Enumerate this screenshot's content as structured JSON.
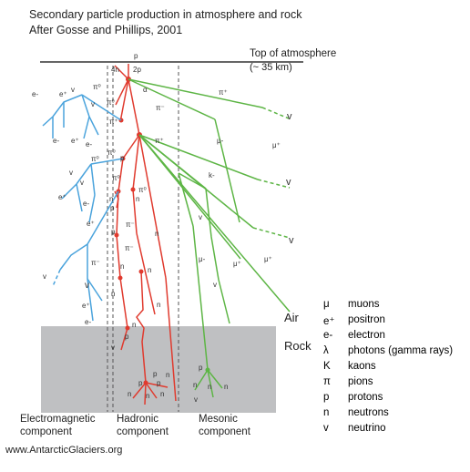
{
  "title": "Secondary particle production in atmosphere and rock",
  "subtitle": "After Gosse and Phillips, 2001",
  "top_of_atmosphere": {
    "label": "Top of atmosphere",
    "altitude": "(~ 35 km)"
  },
  "layers": {
    "air": "Air",
    "rock": "Rock"
  },
  "components": [
    {
      "line1": "Electromagnetic",
      "line2": "component"
    },
    {
      "line1": "Hadronic",
      "line2": "component"
    },
    {
      "line1": "Mesonic",
      "line2": "component"
    }
  ],
  "legend": [
    {
      "symbol": "μ",
      "meaning": "muons"
    },
    {
      "symbol": "e⁺",
      "meaning": "positron"
    },
    {
      "symbol": "e-",
      "meaning": "electron"
    },
    {
      "symbol": "λ",
      "meaning": "photons (gamma rays)"
    },
    {
      "symbol": "K",
      "meaning": "kaons"
    },
    {
      "symbol": "π",
      "meaning": "pions"
    },
    {
      "symbol": "p",
      "meaning": "protons"
    },
    {
      "symbol": "n",
      "meaning": "neutrons"
    },
    {
      "symbol": "v",
      "meaning": "neutrino"
    }
  ],
  "particle_labels": {
    "p_top": "p",
    "n4": "4n",
    "p2": "2p",
    "alpha": "α",
    "pi_plus": "π⁺",
    "pi_minus": "π⁻",
    "pi_zero": "π⁰",
    "mu_minus": "μ-",
    "mu_plus": "μ⁺",
    "k_minus": "k-",
    "e_minus": "e-",
    "e_plus": "e⁺",
    "gamma": "γ",
    "v": "v",
    "p": "p",
    "n": "n"
  },
  "footer": "www.AntarcticGlaciers.org",
  "colors": {
    "hadronic": "#e03a2e",
    "mesonic": "#5db545",
    "electromagnetic": "#4aa3dc",
    "rock": "#bfc0c2",
    "divider": "#555555"
  }
}
